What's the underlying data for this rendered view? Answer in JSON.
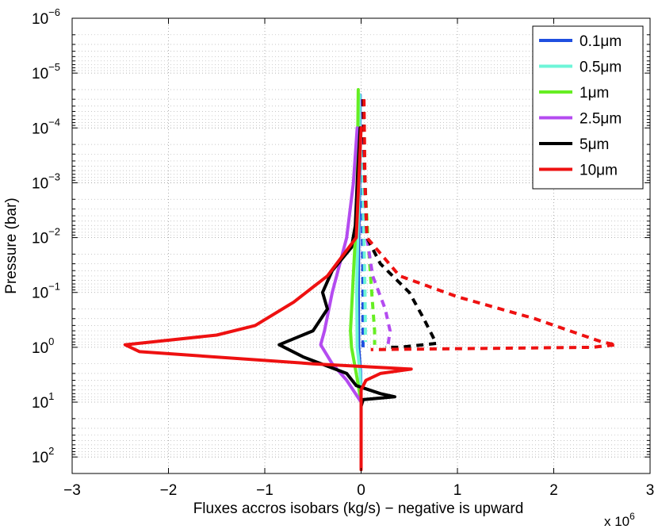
{
  "chart_data": {
    "type": "line",
    "xlabel": "Fluxes accros isobars  (kg/s)  − negative is upward",
    "ylabel": "Pressure (bar)",
    "x_multiplier_label": "x 10",
    "x_multiplier_exp": "6",
    "xlim": [
      -3000000,
      3000000
    ],
    "ylim_bar": [
      1e-06,
      200
    ],
    "y_scale": "log",
    "y_reversed": true,
    "grid": true,
    "legend_position": "top-right",
    "x_ticks": [
      {
        "value": -3,
        "label": "−3"
      },
      {
        "value": -2,
        "label": "−2"
      },
      {
        "value": -1,
        "label": "−1"
      },
      {
        "value": 0,
        "label": "0"
      },
      {
        "value": 1,
        "label": "1"
      },
      {
        "value": 2,
        "label": "2"
      },
      {
        "value": 3,
        "label": "3"
      }
    ],
    "y_ticks": [
      {
        "exp": -6,
        "base": "10",
        "sup": "−6"
      },
      {
        "exp": -5,
        "base": "10",
        "sup": "−5"
      },
      {
        "exp": -4,
        "base": "10",
        "sup": "−4"
      },
      {
        "exp": -3,
        "base": "10",
        "sup": "−3"
      },
      {
        "exp": -2,
        "base": "10",
        "sup": "−2"
      },
      {
        "exp": -1,
        "base": "10",
        "sup": "−1"
      },
      {
        "exp": 0,
        "base": "10",
        "sup": "0"
      },
      {
        "exp": 1,
        "base": "10",
        "sup": "1"
      },
      {
        "exp": 2,
        "base": "10",
        "sup": "2"
      }
    ],
    "series": [
      {
        "name": "0.1μm",
        "color": "#1f4fe0",
        "solid": [
          [
            -10000,
            2.5e-05
          ],
          [
            -15000,
            0.001
          ],
          [
            -25000,
            0.01
          ],
          [
            -30000,
            0.1
          ],
          [
            -25000,
            1
          ],
          [
            -5000,
            3
          ],
          [
            0,
            10
          ],
          [
            0,
            170
          ]
        ],
        "dashed": [
          [
            10000,
            3e-05
          ],
          [
            12000,
            0.001
          ],
          [
            15000,
            0.01
          ],
          [
            20000,
            0.1
          ],
          [
            20000,
            1
          ]
        ]
      },
      {
        "name": "0.5μm",
        "color": "#6ef5d8",
        "solid": [
          [
            -15000,
            2.5e-05
          ],
          [
            -20000,
            0.001
          ],
          [
            -35000,
            0.01
          ],
          [
            -45000,
            0.1
          ],
          [
            -40000,
            1
          ],
          [
            -10000,
            3
          ],
          [
            0,
            10
          ],
          [
            0,
            170
          ]
        ],
        "dashed": [
          [
            15000,
            3e-05
          ],
          [
            20000,
            0.001
          ],
          [
            30000,
            0.01
          ],
          [
            40000,
            0.1
          ],
          [
            45000,
            0.8
          ]
        ]
      },
      {
        "name": "1μm",
        "color": "#66ee22",
        "solid": [
          [
            -30000,
            2e-05
          ],
          [
            -40000,
            0.001
          ],
          [
            -60000,
            0.01
          ],
          [
            -90000,
            0.1
          ],
          [
            -110000,
            0.5
          ],
          [
            -100000,
            1
          ],
          [
            -50000,
            3
          ],
          [
            0,
            10
          ],
          [
            0,
            170
          ]
        ],
        "dashed": [
          [
            20000,
            3e-05
          ],
          [
            40000,
            0.001
          ],
          [
            70000,
            0.01
          ],
          [
            110000,
            0.1
          ],
          [
            140000,
            0.5
          ],
          [
            140000,
            0.9
          ]
        ]
      },
      {
        "name": "2.5μm",
        "color": "#b44bf0",
        "solid": [
          [
            -40000,
            0.0001
          ],
          [
            -80000,
            0.001
          ],
          [
            -150000,
            0.01
          ],
          [
            -300000,
            0.1
          ],
          [
            -380000,
            0.5
          ],
          [
            -420000,
            0.9
          ],
          [
            -300000,
            2
          ],
          [
            -150000,
            4
          ],
          [
            0,
            10
          ]
        ],
        "dashed": [
          [
            10000,
            3e-05
          ],
          [
            40000,
            0.001
          ],
          [
            60000,
            0.01
          ],
          [
            120000,
            0.05
          ],
          [
            250000,
            0.2
          ],
          [
            300000,
            0.5
          ],
          [
            280000,
            0.9
          ]
        ]
      },
      {
        "name": "5μm",
        "color": "#000000",
        "solid": [
          [
            -10000,
            0.0001
          ],
          [
            -40000,
            0.001
          ],
          [
            -60000,
            0.006
          ],
          [
            -100000,
            0.015
          ],
          [
            -300000,
            0.04
          ],
          [
            -400000,
            0.1
          ],
          [
            -350000,
            0.2
          ],
          [
            -500000,
            0.5
          ],
          [
            -850000,
            0.9
          ],
          [
            -600000,
            1.5
          ],
          [
            -150000,
            3
          ],
          [
            -50000,
            5
          ],
          [
            200000,
            7
          ],
          [
            350000,
            8
          ],
          [
            20000,
            9
          ],
          [
            0,
            12
          ]
        ],
        "dashed": [
          [
            20000,
            3e-05
          ],
          [
            40000,
            0.001
          ],
          [
            60000,
            0.01
          ],
          [
            200000,
            0.03
          ],
          [
            500000,
            0.1
          ],
          [
            650000,
            0.3
          ],
          [
            780000,
            0.85
          ],
          [
            400000,
            1
          ],
          [
            250000,
            1
          ]
        ]
      },
      {
        "name": "10μm",
        "color": "#ee1111",
        "solid": [
          [
            0,
            0.0001
          ],
          [
            -50000,
            0.01
          ],
          [
            -350000,
            0.05
          ],
          [
            -500000,
            0.08
          ],
          [
            -700000,
            0.15
          ],
          [
            -1100000,
            0.4
          ],
          [
            -1500000,
            0.6
          ],
          [
            -2450000,
            0.9
          ],
          [
            -2300000,
            1.2
          ],
          [
            -500000,
            2
          ],
          [
            520000,
            2.5
          ],
          [
            200000,
            3
          ],
          [
            50000,
            4
          ],
          [
            0,
            6
          ],
          [
            0,
            170
          ]
        ],
        "dashed": [
          [
            30000,
            3e-05
          ],
          [
            40000,
            0.001
          ],
          [
            60000,
            0.01
          ],
          [
            400000,
            0.05
          ],
          [
            1000000,
            0.12
          ],
          [
            1800000,
            0.3
          ],
          [
            2500000,
            0.8
          ],
          [
            2650000,
            0.9
          ],
          [
            2400000,
            1
          ],
          [
            1200000,
            1.05
          ],
          [
            100000,
            1.1
          ]
        ]
      }
    ]
  }
}
